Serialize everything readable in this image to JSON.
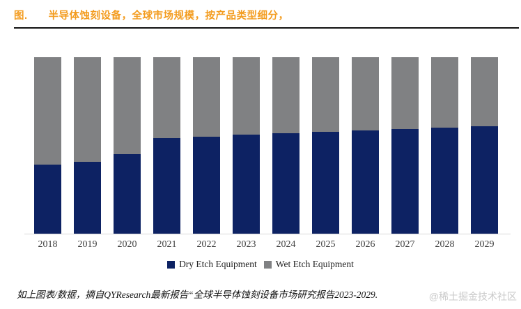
{
  "page": {
    "title_prefix": "图.",
    "title": "半导体蚀刻设备，全球市场规模，按产品类型细分，",
    "footer_note": "如上图表/数据，摘自QYResearch最新报告“全球半导体蚀刻设备市场研究报告2023-2029.",
    "watermark": "@稀土掘金技术社区"
  },
  "colors": {
    "title_orange": "#f39c1f",
    "dry_navy": "#0d2263",
    "wet_gray": "#808183",
    "axis_line": "#d9d9d9",
    "divider": "#111111",
    "axis_text": "#404040",
    "watermark_gray": "#c9c9c9"
  },
  "legend": {
    "items": [
      {
        "label": "Dry Etch Equipment",
        "color": "#0d2263"
      },
      {
        "label": "Wet Etch Equipment",
        "color": "#808183"
      }
    ]
  },
  "chart_data": {
    "type": "bar",
    "stacked": true,
    "percent_stacked": true,
    "title": "半导体蚀刻设备，全球市场规模，按产品类型细分",
    "categories": [
      "2018",
      "2019",
      "2020",
      "2021",
      "2022",
      "2023",
      "2024",
      "2025",
      "2026",
      "2027",
      "2028",
      "2029"
    ],
    "series": [
      {
        "name": "Dry Etch Equipment",
        "color": "#0d2263",
        "values": [
          39.1,
          40.6,
          45.1,
          54.0,
          55.1,
          56.2,
          57.0,
          57.6,
          58.6,
          59.4,
          60.2,
          61.0
        ]
      },
      {
        "name": "Wet Etch Equipment",
        "color": "#808183",
        "values": [
          60.9,
          59.4,
          54.9,
          46.0,
          44.9,
          43.8,
          43.0,
          42.4,
          41.4,
          40.6,
          39.8,
          39.0
        ]
      }
    ],
    "xlabel": "",
    "ylabel": "",
    "ylim": [
      0,
      100
    ],
    "grid": false,
    "y_axis_visible": false,
    "legend_position": "bottom"
  }
}
